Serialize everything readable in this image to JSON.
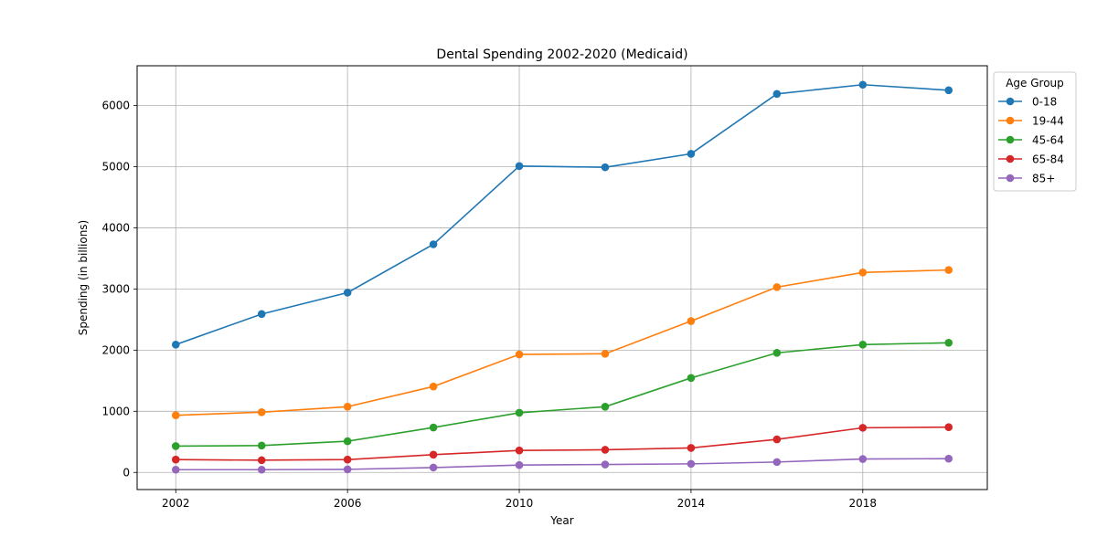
{
  "chart_data": {
    "type": "line",
    "title": "Dental Spending 2002-2020 (Medicaid)",
    "xlabel": "Year",
    "ylabel": "Spending (in billions)",
    "x": [
      2002,
      2004,
      2006,
      2008,
      2010,
      2012,
      2014,
      2016,
      2018,
      2020
    ],
    "xticks": [
      2002,
      2006,
      2010,
      2014,
      2018
    ],
    "yticks": [
      0,
      1000,
      2000,
      3000,
      4000,
      5000,
      6000
    ],
    "xlim": [
      2001.1,
      2020.9
    ],
    "ylim": [
      -280,
      6650
    ],
    "grid": true,
    "legend": {
      "title": "Age Group",
      "placement": "outside-right-top"
    },
    "series": [
      {
        "name": "0-18",
        "color": "#1f77b4",
        "values": [
          2090,
          2590,
          2940,
          3730,
          5010,
          4990,
          5210,
          6190,
          6340,
          6250
        ]
      },
      {
        "name": "19-44",
        "color": "#ff7f0e",
        "values": [
          935,
          985,
          1075,
          1405,
          1930,
          1940,
          2475,
          3030,
          3270,
          3310
        ]
      },
      {
        "name": "45-64",
        "color": "#2ca02c",
        "values": [
          430,
          440,
          510,
          735,
          975,
          1075,
          1545,
          1955,
          2090,
          2120
        ]
      },
      {
        "name": "65-84",
        "color": "#d62728",
        "values": [
          210,
          200,
          210,
          290,
          360,
          370,
          400,
          540,
          730,
          740
        ]
      },
      {
        "name": "85+",
        "color": "#9467bd",
        "values": [
          45,
          45,
          50,
          80,
          120,
          130,
          140,
          170,
          220,
          225
        ]
      }
    ]
  }
}
